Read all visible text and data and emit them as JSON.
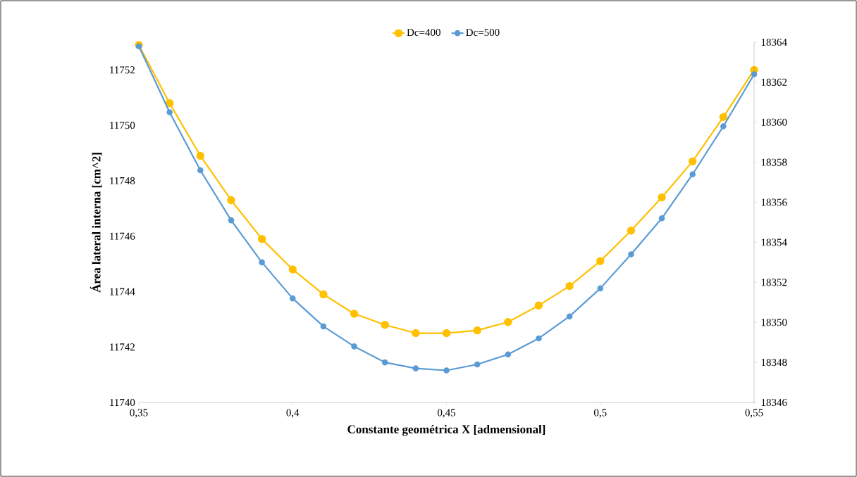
{
  "chart_data": {
    "type": "line",
    "xlabel": "Constante geométrica X [admensional]",
    "ylabel": "Área lateral interna  [cm^2]",
    "x": [
      0.35,
      0.36,
      0.37,
      0.38,
      0.39,
      0.4,
      0.41,
      0.42,
      0.43,
      0.44,
      0.45,
      0.46,
      0.47,
      0.48,
      0.49,
      0.5,
      0.51,
      0.52,
      0.53,
      0.54,
      0.55
    ],
    "series": [
      {
        "name": "Dc=400",
        "color": "#ffc000",
        "values": [
          11752.9,
          11750.8,
          11748.9,
          11747.3,
          11745.9,
          11744.8,
          11743.9,
          11743.2,
          11742.8,
          11742.5,
          11742.5,
          11742.6,
          11742.9,
          11743.5,
          11744.2,
          11745.1,
          11746.2,
          11747.4,
          11748.7,
          11750.3,
          11752.0
        ]
      },
      {
        "name": "Dc=500",
        "color": "#5b9bd5",
        "axis": "y2",
        "values": [
          18363.8,
          18360.5,
          18357.6,
          18355.1,
          18353.0,
          18351.2,
          18349.8,
          18348.8,
          18348.0,
          18347.7,
          18347.6,
          18347.9,
          18348.4,
          18349.2,
          18350.3,
          18351.7,
          18353.4,
          18355.2,
          18357.4,
          18359.8,
          18362.4
        ]
      }
    ],
    "xlim": [
      0.35,
      0.55
    ],
    "xticks": [
      {
        "value": 0.35,
        "label": "0,35"
      },
      {
        "value": 0.4,
        "label": "0,4"
      },
      {
        "value": 0.45,
        "label": "0,45"
      },
      {
        "value": 0.5,
        "label": "0,5"
      },
      {
        "value": 0.55,
        "label": "0,55"
      }
    ],
    "ylim": [
      11740,
      11753
    ],
    "yticks": [
      11740,
      11742,
      11744,
      11746,
      11748,
      11750,
      11752
    ],
    "y2lim": [
      18346,
      18364
    ],
    "y2ticks": [
      18346,
      18348,
      18350,
      18352,
      18354,
      18356,
      18358,
      18360,
      18362,
      18364
    ],
    "legend": "top",
    "marker": "circle",
    "line_style": "solid"
  }
}
